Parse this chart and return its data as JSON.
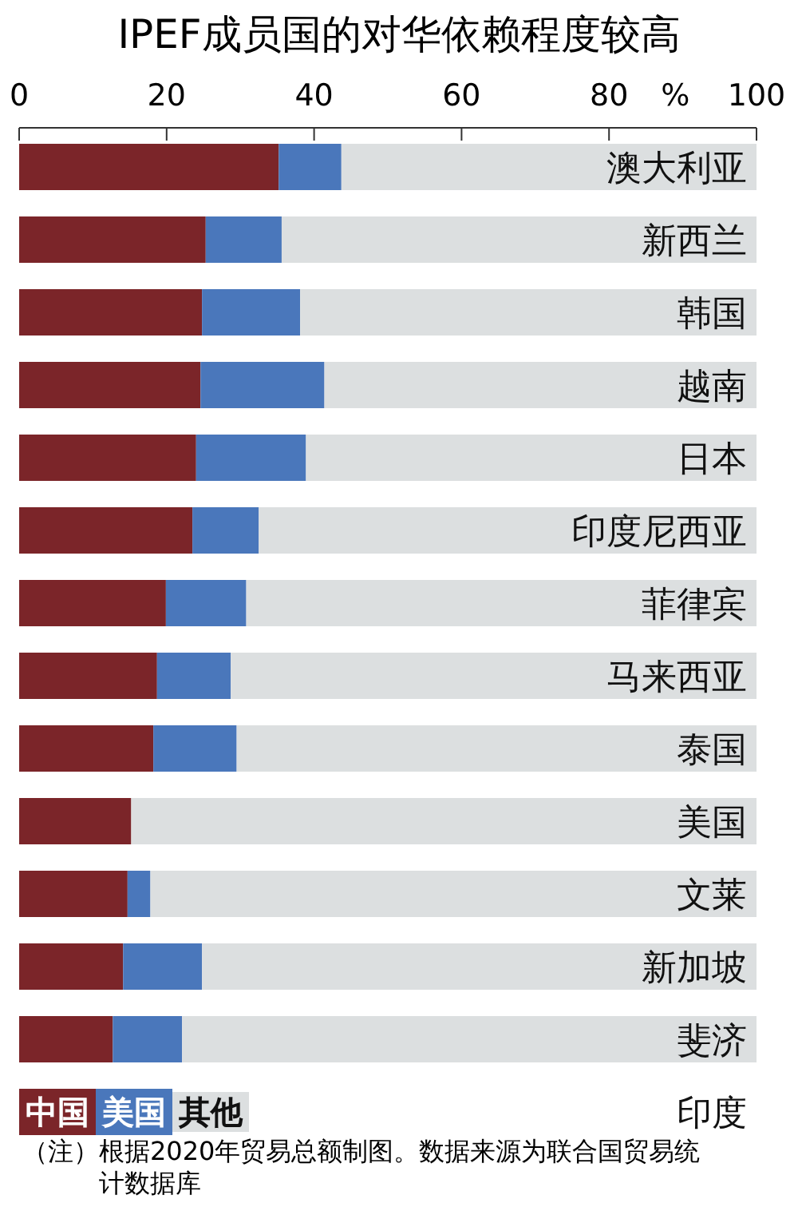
{
  "chart_data": {
    "type": "bar",
    "orientation": "horizontal",
    "stacked": true,
    "title": "IPEF成员国的对华依赖程度较高",
    "xlabel": "%",
    "categories": [
      "澳大利亚",
      "新西兰",
      "韩国",
      "越南",
      "日本",
      "印度尼西亚",
      "菲律宾",
      "马来西亚",
      "泰国",
      "美国",
      "文莱",
      "新加坡",
      "斐济",
      "印度"
    ],
    "series": [
      {
        "name": "中国",
        "color": "#7b2529",
        "values": [
          35.2,
          25.3,
          24.8,
          24.6,
          24.0,
          23.5,
          19.9,
          18.7,
          18.2,
          15.2,
          14.7,
          14.1,
          12.7,
          null
        ]
      },
      {
        "name": "美国",
        "color": "#4a77bb",
        "values": [
          8.5,
          10.3,
          13.3,
          16.8,
          14.9,
          9.0,
          10.9,
          10.0,
          11.3,
          0,
          3.1,
          10.7,
          9.4,
          null
        ]
      },
      {
        "name": "其他",
        "color": "#dcdfe0",
        "values": [
          56.3,
          64.4,
          61.9,
          58.6,
          61.1,
          67.5,
          69.2,
          71.3,
          70.5,
          84.8,
          82.2,
          75.2,
          77.9,
          null
        ]
      }
    ],
    "xlim": [
      0,
      100
    ],
    "xticks": [
      0,
      20,
      40,
      60,
      {
        "value": 80,
        "label": "80"
      },
      100
    ],
    "legend": "bottom left",
    "annotations": [
      "（注）根据2020年贸易总额制图。数据来源为联合国贸易统计数据库"
    ]
  }
}
